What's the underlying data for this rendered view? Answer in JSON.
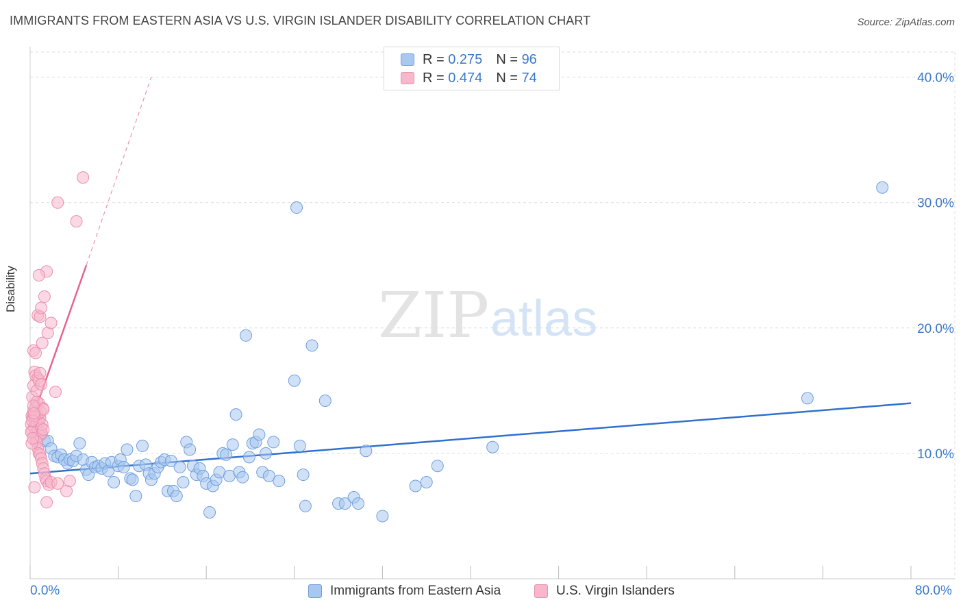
{
  "header": {
    "title": "IMMIGRANTS FROM EASTERN ASIA VS U.S. VIRGIN ISLANDER DISABILITY CORRELATION CHART",
    "source": "Source: ZipAtlas.com"
  },
  "watermark": {
    "zip": "ZIP",
    "atlas": "atlas"
  },
  "legend": {
    "rows": [
      {
        "r_label": "R =",
        "r_value": "0.275",
        "n_label": "N =",
        "n_value": "96",
        "color": "#a9c8f0"
      },
      {
        "r_label": "R =",
        "r_value": "0.474",
        "n_label": "N =",
        "n_value": "74",
        "color": "#f7b8cc"
      }
    ]
  },
  "bottom_legend": {
    "series_a": "Immigrants from Eastern Asia",
    "series_b": "U.S. Virgin Islanders"
  },
  "colors": {
    "blue_fill": "#a9c8f0",
    "blue_stroke": "#6f9fdc",
    "blue_line": "#2f6fcf",
    "pink_fill": "#f7b8cc",
    "pink_stroke": "#ea8fae",
    "pink_line": "#e8628f",
    "axis_text": "#3a78c9",
    "grid": "#dcdcdc"
  },
  "chart_data": {
    "type": "scatter",
    "title": "IMMIGRANTS FROM EASTERN ASIA VS U.S. VIRGIN ISLANDER DISABILITY CORRELATION CHART",
    "xlabel": "",
    "ylabel": "Disability",
    "xlim": [
      0,
      80
    ],
    "ylim": [
      0,
      42
    ],
    "x_tick_labels": {
      "left": "0.0%",
      "right": "80.0%"
    },
    "y_ticks": [
      {
        "value": 10,
        "label": "10.0%"
      },
      {
        "value": 20,
        "label": "20.0%"
      },
      {
        "value": 30,
        "label": "30.0%"
      },
      {
        "value": 40,
        "label": "40.0%"
      }
    ],
    "series": [
      {
        "name": "Immigrants from Eastern Asia",
        "color": "#a9c8f0",
        "R": 0.275,
        "N": 96,
        "trend": {
          "x0": 0,
          "y0": 8.4,
          "x1": 80,
          "y1": 14.0
        },
        "points": [
          [
            0.3,
            12.9
          ],
          [
            0.5,
            13.6
          ],
          [
            0.8,
            12.5
          ],
          [
            1.0,
            11.5
          ],
          [
            1.3,
            11.0
          ],
          [
            1.6,
            11.0
          ],
          [
            1.9,
            10.4
          ],
          [
            2.2,
            9.8
          ],
          [
            2.5,
            9.7
          ],
          [
            2.8,
            9.9
          ],
          [
            3.1,
            9.5
          ],
          [
            3.4,
            9.2
          ],
          [
            3.6,
            9.5
          ],
          [
            3.9,
            9.4
          ],
          [
            4.2,
            9.8
          ],
          [
            4.5,
            10.8
          ],
          [
            4.8,
            9.5
          ],
          [
            5.1,
            8.7
          ],
          [
            5.3,
            8.3
          ],
          [
            5.6,
            9.3
          ],
          [
            5.9,
            8.9
          ],
          [
            6.2,
            9.0
          ],
          [
            6.5,
            8.8
          ],
          [
            6.8,
            9.2
          ],
          [
            7.1,
            8.6
          ],
          [
            7.4,
            9.3
          ],
          [
            7.6,
            7.7
          ],
          [
            8.0,
            9.0
          ],
          [
            8.2,
            9.5
          ],
          [
            8.5,
            8.9
          ],
          [
            8.8,
            10.3
          ],
          [
            9.1,
            8.0
          ],
          [
            9.3,
            7.9
          ],
          [
            9.6,
            6.6
          ],
          [
            9.9,
            9.0
          ],
          [
            10.2,
            10.6
          ],
          [
            10.5,
            9.1
          ],
          [
            10.8,
            8.4
          ],
          [
            11.0,
            7.9
          ],
          [
            11.3,
            8.4
          ],
          [
            11.6,
            8.9
          ],
          [
            11.9,
            9.3
          ],
          [
            12.2,
            9.5
          ],
          [
            12.5,
            7.0
          ],
          [
            12.8,
            9.4
          ],
          [
            13.0,
            7.0
          ],
          [
            13.3,
            6.6
          ],
          [
            13.6,
            8.9
          ],
          [
            13.9,
            7.7
          ],
          [
            14.2,
            10.9
          ],
          [
            14.5,
            10.3
          ],
          [
            14.8,
            9.0
          ],
          [
            15.1,
            8.3
          ],
          [
            15.4,
            8.8
          ],
          [
            15.7,
            8.2
          ],
          [
            16.0,
            7.6
          ],
          [
            16.3,
            5.3
          ],
          [
            16.6,
            7.4
          ],
          [
            16.9,
            7.9
          ],
          [
            17.2,
            8.5
          ],
          [
            17.5,
            10.0
          ],
          [
            17.8,
            9.9
          ],
          [
            18.1,
            8.2
          ],
          [
            18.4,
            10.7
          ],
          [
            18.7,
            13.1
          ],
          [
            19.0,
            8.5
          ],
          [
            19.3,
            8.1
          ],
          [
            19.6,
            19.4
          ],
          [
            19.9,
            9.7
          ],
          [
            20.2,
            10.8
          ],
          [
            20.5,
            10.9
          ],
          [
            20.8,
            11.5
          ],
          [
            21.1,
            8.5
          ],
          [
            21.4,
            10.0
          ],
          [
            21.7,
            8.2
          ],
          [
            22.1,
            10.9
          ],
          [
            22.6,
            7.8
          ],
          [
            24.0,
            15.8
          ],
          [
            24.2,
            29.6
          ],
          [
            24.5,
            10.6
          ],
          [
            24.8,
            8.3
          ],
          [
            25.0,
            5.8
          ],
          [
            25.6,
            18.6
          ],
          [
            26.8,
            14.2
          ],
          [
            28.0,
            6.0
          ],
          [
            28.6,
            6.0
          ],
          [
            29.4,
            6.5
          ],
          [
            29.8,
            6.0
          ],
          [
            30.5,
            10.2
          ],
          [
            32.0,
            5.0
          ],
          [
            35.0,
            7.4
          ],
          [
            36.0,
            7.7
          ],
          [
            37.0,
            9.0
          ],
          [
            42.0,
            10.5
          ],
          [
            70.6,
            14.4
          ],
          [
            77.4,
            31.2
          ]
        ]
      },
      {
        "name": "U.S. Virgin Islanders",
        "color": "#f7b8cc",
        "R": 0.474,
        "N": 74,
        "trend": {
          "x0": 0,
          "y0": 12.3,
          "x1": 5.1,
          "y1": 25.0,
          "dash_x1": 11.0,
          "dash_y1": 40.0
        },
        "points": [
          [
            0.1,
            12.3
          ],
          [
            0.15,
            13.0
          ],
          [
            0.2,
            11.8
          ],
          [
            0.25,
            12.9
          ],
          [
            0.3,
            13.4
          ],
          [
            0.35,
            12.1
          ],
          [
            0.4,
            11.5
          ],
          [
            0.45,
            12.6
          ],
          [
            0.5,
            13.7
          ],
          [
            0.55,
            11.2
          ],
          [
            0.6,
            12.4
          ],
          [
            0.65,
            13.1
          ],
          [
            0.7,
            11.9
          ],
          [
            0.75,
            12.7
          ],
          [
            0.8,
            14.0
          ],
          [
            0.85,
            11.4
          ],
          [
            0.9,
            12.8
          ],
          [
            0.95,
            13.3
          ],
          [
            1.0,
            12.0
          ],
          [
            1.05,
            11.6
          ],
          [
            1.1,
            12.3
          ],
          [
            1.15,
            13.6
          ],
          [
            1.2,
            11.9
          ],
          [
            0.2,
            14.5
          ],
          [
            0.3,
            15.4
          ],
          [
            0.4,
            16.5
          ],
          [
            0.5,
            16.2
          ],
          [
            0.6,
            15.0
          ],
          [
            0.7,
            16.0
          ],
          [
            0.8,
            15.8
          ],
          [
            0.9,
            16.4
          ],
          [
            1.0,
            15.5
          ],
          [
            0.3,
            18.2
          ],
          [
            0.5,
            18.0
          ],
          [
            0.7,
            21.0
          ],
          [
            0.9,
            20.9
          ],
          [
            1.0,
            21.6
          ],
          [
            1.1,
            18.8
          ],
          [
            1.3,
            22.5
          ],
          [
            1.6,
            19.6
          ],
          [
            1.9,
            20.4
          ],
          [
            1.5,
            24.5
          ],
          [
            0.8,
            24.2
          ],
          [
            2.5,
            30.0
          ],
          [
            4.2,
            28.5
          ],
          [
            4.8,
            32.0
          ],
          [
            2.3,
            14.9
          ],
          [
            0.6,
            14.1
          ],
          [
            0.4,
            13.0
          ],
          [
            1.2,
            13.5
          ],
          [
            0.5,
            11.0
          ],
          [
            0.6,
            10.9
          ],
          [
            0.7,
            10.4
          ],
          [
            0.8,
            10.0
          ],
          [
            0.9,
            9.9
          ],
          [
            1.0,
            9.6
          ],
          [
            1.1,
            9.2
          ],
          [
            1.2,
            8.8
          ],
          [
            1.3,
            8.4
          ],
          [
            1.4,
            8.0
          ],
          [
            1.5,
            7.8
          ],
          [
            1.7,
            7.5
          ],
          [
            0.4,
            7.3
          ],
          [
            1.9,
            7.7
          ],
          [
            2.5,
            7.6
          ],
          [
            3.3,
            7.0
          ],
          [
            1.5,
            6.1
          ],
          [
            0.3,
            13.8
          ],
          [
            0.2,
            12.6
          ],
          [
            0.1,
            11.7
          ],
          [
            0.15,
            10.8
          ],
          [
            0.25,
            11.2
          ],
          [
            0.35,
            13.2
          ],
          [
            3.6,
            7.8
          ]
        ]
      }
    ]
  }
}
